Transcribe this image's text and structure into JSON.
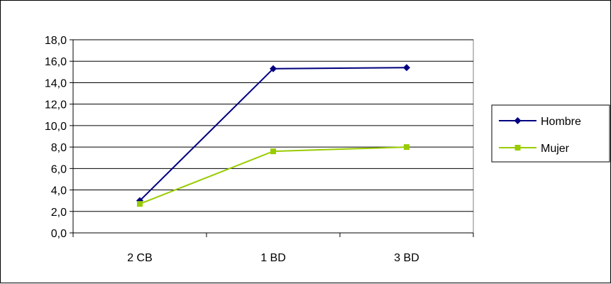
{
  "chart_data": {
    "type": "line",
    "title": "",
    "xlabel": "",
    "ylabel": "",
    "categories": [
      "2 CB",
      "1 BD",
      "3 BD"
    ],
    "ylim": [
      0,
      18
    ],
    "ytick_step": 2,
    "ytick_labels": [
      "0,0",
      "2,0",
      "4,0",
      "6,0",
      "8,0",
      "10,0",
      "12,0",
      "14,0",
      "16,0",
      "18,0"
    ],
    "grid": true,
    "legend_position": "right",
    "series": [
      {
        "name": "Hombre",
        "values": [
          3.0,
          15.3,
          15.4
        ],
        "color": "#000080",
        "marker": "diamond"
      },
      {
        "name": "Mujer",
        "values": [
          2.7,
          7.6,
          8.0
        ],
        "color": "#99CC00",
        "marker": "square"
      }
    ]
  }
}
